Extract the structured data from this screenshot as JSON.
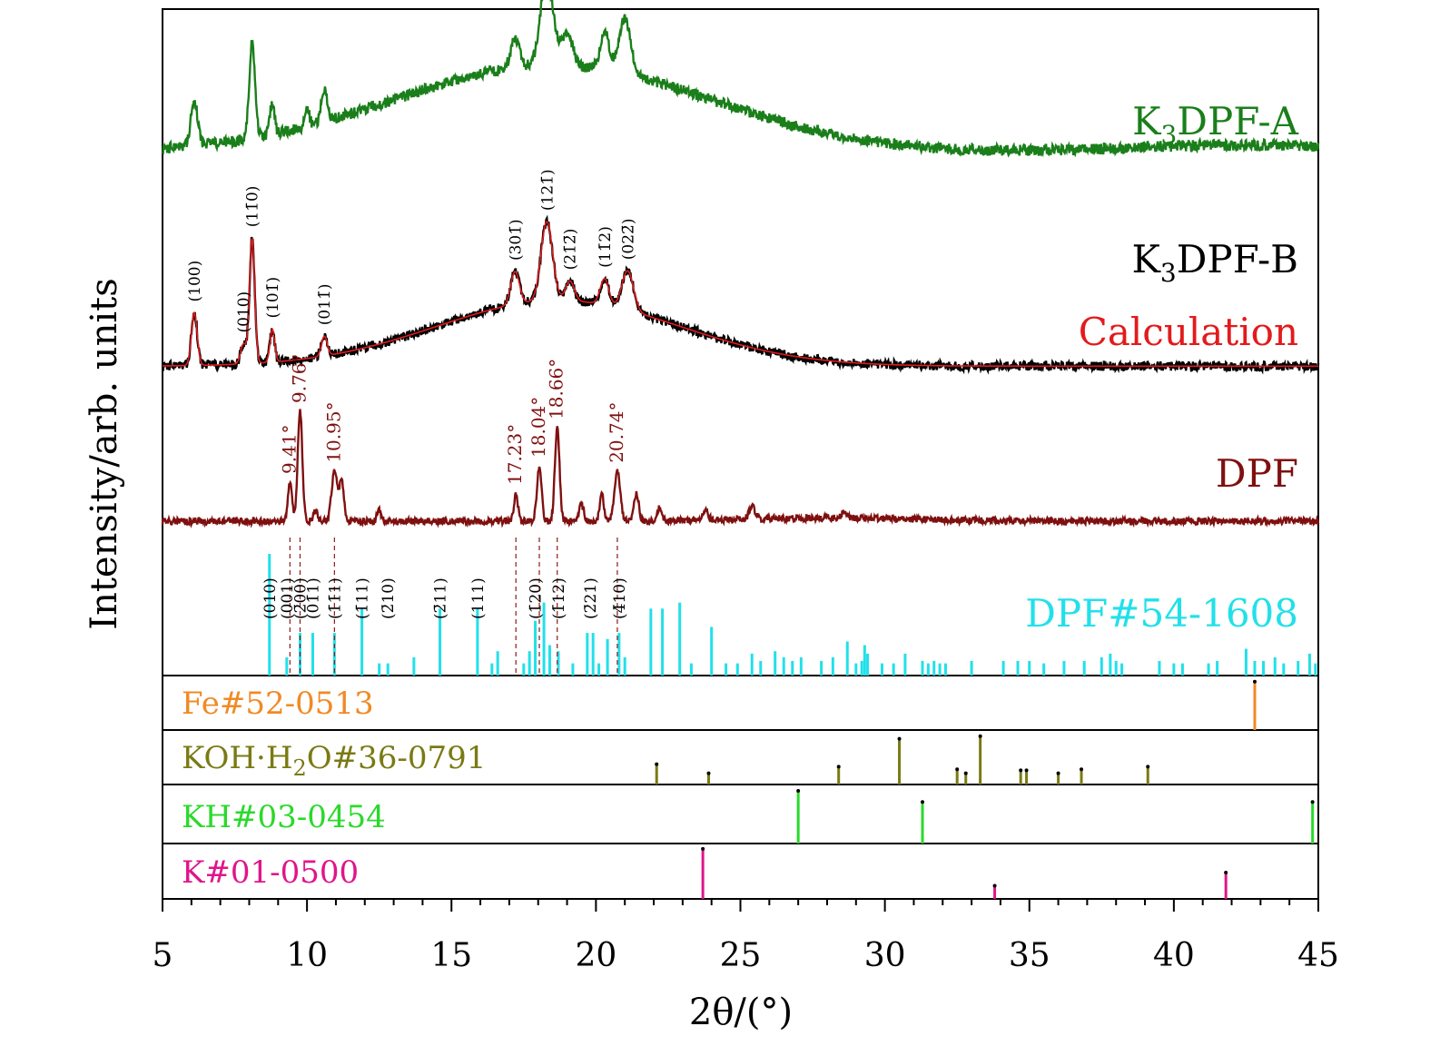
{
  "chart_data": {
    "type": "line",
    "xlabel": "2θ/(°)",
    "ylabel": "Intensity/arb. units",
    "xlim": [
      5,
      45
    ],
    "xticks": [
      "5",
      "10",
      "15",
      "20",
      "25",
      "30",
      "35",
      "40",
      "45"
    ],
    "grid": false,
    "series": [
      {
        "name": "K3DPF-A",
        "label_html": "K<tspan font-size='28' dy='10'>3</tspan><tspan dy='-10'>DPF-A</tspan>",
        "label_text": "K3DPF-A",
        "color": "#1a7f1a",
        "baseline": 0.25,
        "rise": 0.45,
        "noise": 0.035,
        "hump": [
          {
            "c": 18.5,
            "w": 5.5,
            "h": 0.55
          },
          {
            "c": 42.5,
            "w": 4,
            "h": 0.05
          }
        ],
        "peaks": [
          [
            6.1,
            0.28,
            0.12
          ],
          [
            8.1,
            0.6,
            0.1
          ],
          [
            8.8,
            0.2,
            0.08
          ],
          [
            10.0,
            0.12,
            0.08
          ],
          [
            10.6,
            0.2,
            0.1
          ],
          [
            17.2,
            0.18,
            0.15
          ],
          [
            18.3,
            0.55,
            0.22
          ],
          [
            19.0,
            0.2,
            0.2
          ],
          [
            20.3,
            0.25,
            0.15
          ],
          [
            21.0,
            0.35,
            0.2
          ]
        ]
      },
      {
        "name": "K3DPF-B",
        "label_html": "K<tspan font-size='28' dy='10'>3</tspan><tspan dy='-10'>DPF-B</tspan>",
        "label_text": "K3DPF-B",
        "color": "#000000",
        "baseline": 0.06,
        "rise": 0.0,
        "noise": 0.035,
        "hump": [
          {
            "c": 18.7,
            "w": 4.2,
            "h": 0.5
          }
        ],
        "peaks": [
          [
            6.1,
            0.4,
            0.1
          ],
          [
            8.1,
            0.95,
            0.09
          ],
          [
            7.8,
            0.15,
            0.1
          ],
          [
            8.8,
            0.25,
            0.08
          ],
          [
            10.6,
            0.15,
            0.1
          ],
          [
            17.2,
            0.25,
            0.15
          ],
          [
            18.3,
            0.6,
            0.2
          ],
          [
            19.1,
            0.15,
            0.15
          ],
          [
            20.3,
            0.2,
            0.15
          ],
          [
            21.1,
            0.3,
            0.2
          ]
        ]
      },
      {
        "name": "Calculation",
        "label_html": "Calculation",
        "label_text": "Calculation",
        "color": "#e31a1c",
        "baseline": 0.06,
        "rise": 0.0,
        "noise": 0.0,
        "hump": [
          {
            "c": 18.7,
            "w": 4.2,
            "h": 0.5
          }
        ],
        "peaks": [
          [
            6.1,
            0.4,
            0.1
          ],
          [
            8.1,
            0.95,
            0.09
          ],
          [
            7.8,
            0.15,
            0.1
          ],
          [
            8.8,
            0.25,
            0.08
          ],
          [
            10.6,
            0.15,
            0.1
          ],
          [
            17.2,
            0.25,
            0.15
          ],
          [
            18.3,
            0.6,
            0.2
          ],
          [
            19.1,
            0.15,
            0.15
          ],
          [
            20.3,
            0.2,
            0.15
          ],
          [
            21.1,
            0.3,
            0.2
          ]
        ]
      },
      {
        "name": "DPF",
        "label_html": "DPF",
        "label_text": "DPF",
        "color": "#7f1010",
        "baseline": 0.05,
        "rise": 0.0,
        "noise": 0.03,
        "hump": [
          {
            "c": 28,
            "w": 3,
            "h": 0.03
          }
        ],
        "peaks": [
          [
            9.41,
            0.35,
            0.07
          ],
          [
            9.76,
            1.0,
            0.08
          ],
          [
            10.3,
            0.1,
            0.07
          ],
          [
            10.95,
            0.45,
            0.1
          ],
          [
            11.2,
            0.35,
            0.08
          ],
          [
            12.5,
            0.1,
            0.07
          ],
          [
            17.23,
            0.25,
            0.07
          ],
          [
            18.04,
            0.5,
            0.08
          ],
          [
            18.66,
            0.85,
            0.08
          ],
          [
            19.5,
            0.15,
            0.08
          ],
          [
            20.2,
            0.25,
            0.07
          ],
          [
            20.74,
            0.45,
            0.1
          ],
          [
            21.4,
            0.25,
            0.08
          ],
          [
            22.2,
            0.12,
            0.08
          ],
          [
            23.8,
            0.1,
            0.08
          ],
          [
            25.4,
            0.12,
            0.1
          ],
          [
            28.6,
            0.05,
            0.1
          ]
        ]
      }
    ],
    "dpf_angles": [
      "9.41°",
      "9.76°",
      "10.95°",
      "17.23°",
      "18.04°",
      "18.66°",
      "20.74°"
    ],
    "dpf_angle_values": [
      9.41,
      9.76,
      10.95,
      17.23,
      18.04,
      18.66,
      20.74
    ],
    "b_hkl": [
      {
        "x": 6.1,
        "label": "(100)"
      },
      {
        "x": 7.8,
        "label": "(010)"
      },
      {
        "x": 8.1,
        "label": "(11̄0)"
      },
      {
        "x": 8.8,
        "label": "(101̄)"
      },
      {
        "x": 10.6,
        "label": "(011̄)"
      },
      {
        "x": 17.2,
        "label": "(301̄)"
      },
      {
        "x": 18.3,
        "label": "(121̄)"
      },
      {
        "x": 19.1,
        "label": "(21̄2̄)"
      },
      {
        "x": 20.3,
        "label": "(11̄2)"
      },
      {
        "x": 21.1,
        "label": "(022̄)"
      }
    ],
    "ref_hkl": [
      {
        "x": 8.7,
        "label": "(010)"
      },
      {
        "x": 9.3,
        "label": "(001)"
      },
      {
        "x": 9.76,
        "label": "(2̄00)"
      },
      {
        "x": 10.2,
        "label": "(01̄1)"
      },
      {
        "x": 10.95,
        "label": "(1̄1̄1)"
      },
      {
        "x": 11.9,
        "label": "(1̄11)"
      },
      {
        "x": 12.8,
        "label": "(2̄10)"
      },
      {
        "x": 14.6,
        "label": "(2̄11)"
      },
      {
        "x": 15.9,
        "label": "(111)"
      },
      {
        "x": 17.9,
        "label": "(1̄20)"
      },
      {
        "x": 18.7,
        "label": "(1̄12)"
      },
      {
        "x": 19.8,
        "label": "(2̄21)"
      },
      {
        "x": 20.8,
        "label": "(4̄10)"
      }
    ],
    "reference_patterns": [
      {
        "name": "DPF#54-1608",
        "color": "#22e0ea",
        "lines": [
          [
            8.7,
            1.0
          ],
          [
            9.3,
            0.15
          ],
          [
            9.76,
            0.35
          ],
          [
            10.2,
            0.35
          ],
          [
            10.95,
            0.35
          ],
          [
            11.9,
            0.55
          ],
          [
            12.5,
            0.1
          ],
          [
            12.8,
            0.1
          ],
          [
            13.7,
            0.15
          ],
          [
            14.6,
            0.55
          ],
          [
            15.9,
            0.55
          ],
          [
            16.4,
            0.1
          ],
          [
            16.6,
            0.2
          ],
          [
            17.5,
            0.1
          ],
          [
            17.7,
            0.2
          ],
          [
            17.9,
            0.45
          ],
          [
            18.2,
            0.6
          ],
          [
            18.4,
            0.25
          ],
          [
            18.7,
            0.2
          ],
          [
            19.2,
            0.1
          ],
          [
            19.7,
            0.35
          ],
          [
            19.9,
            0.35
          ],
          [
            20.1,
            0.1
          ],
          [
            20.4,
            0.3
          ],
          [
            20.8,
            0.35
          ],
          [
            21.0,
            0.15
          ],
          [
            21.9,
            0.55
          ],
          [
            22.3,
            0.55
          ],
          [
            22.9,
            0.6
          ],
          [
            23.3,
            0.1
          ],
          [
            24.0,
            0.4
          ],
          [
            24.5,
            0.1
          ],
          [
            24.9,
            0.1
          ],
          [
            25.4,
            0.18
          ],
          [
            25.7,
            0.12
          ],
          [
            26.2,
            0.2
          ],
          [
            26.5,
            0.15
          ],
          [
            26.8,
            0.12
          ],
          [
            27.1,
            0.15
          ],
          [
            27.8,
            0.12
          ],
          [
            28.2,
            0.15
          ],
          [
            28.7,
            0.28
          ],
          [
            29.0,
            0.1
          ],
          [
            29.2,
            0.12
          ],
          [
            29.3,
            0.25
          ],
          [
            29.4,
            0.18
          ],
          [
            29.9,
            0.1
          ],
          [
            30.3,
            0.1
          ],
          [
            30.7,
            0.18
          ],
          [
            31.3,
            0.12
          ],
          [
            31.5,
            0.1
          ],
          [
            31.7,
            0.12
          ],
          [
            31.9,
            0.1
          ],
          [
            32.1,
            0.1
          ],
          [
            33.0,
            0.12
          ],
          [
            34.1,
            0.12
          ],
          [
            34.6,
            0.12
          ],
          [
            35.0,
            0.12
          ],
          [
            35.5,
            0.1
          ],
          [
            36.2,
            0.12
          ],
          [
            36.9,
            0.12
          ],
          [
            37.5,
            0.15
          ],
          [
            37.8,
            0.18
          ],
          [
            38.0,
            0.12
          ],
          [
            38.2,
            0.1
          ],
          [
            39.5,
            0.12
          ],
          [
            40.0,
            0.1
          ],
          [
            40.3,
            0.1
          ],
          [
            41.2,
            0.1
          ],
          [
            41.5,
            0.12
          ],
          [
            42.5,
            0.22
          ],
          [
            42.8,
            0.12
          ],
          [
            43.1,
            0.12
          ],
          [
            43.5,
            0.15
          ],
          [
            43.8,
            0.1
          ],
          [
            44.3,
            0.12
          ],
          [
            44.7,
            0.18
          ],
          [
            44.9,
            0.1
          ]
        ]
      },
      {
        "name": "Fe#52-0513",
        "color": "#f08a24",
        "lines": [
          [
            42.8,
            0.95
          ]
        ]
      },
      {
        "name": "KOH·H2O#36-0791",
        "label_html": "KOH·H<tspan font-size='24' dy='8'>2</tspan><tspan dy='-8'>O#36-0791</tspan>",
        "color": "#7a7a14",
        "lines": [
          [
            22.1,
            0.4
          ],
          [
            23.9,
            0.22
          ],
          [
            28.4,
            0.35
          ],
          [
            30.5,
            0.9
          ],
          [
            32.5,
            0.3
          ],
          [
            32.8,
            0.22
          ],
          [
            33.3,
            0.95
          ],
          [
            34.7,
            0.28
          ],
          [
            34.9,
            0.28
          ],
          [
            36.0,
            0.22
          ],
          [
            36.8,
            0.3
          ],
          [
            39.1,
            0.35
          ]
        ]
      },
      {
        "name": "KH#03-0454",
        "color": "#2bd92b",
        "lines": [
          [
            27.0,
            0.95
          ],
          [
            31.3,
            0.75
          ],
          [
            44.8,
            0.75
          ]
        ]
      },
      {
        "name": "K#01-0500",
        "color": "#e0158a",
        "lines": [
          [
            23.7,
            0.95
          ],
          [
            33.8,
            0.25
          ],
          [
            41.8,
            0.5
          ]
        ]
      }
    ]
  }
}
